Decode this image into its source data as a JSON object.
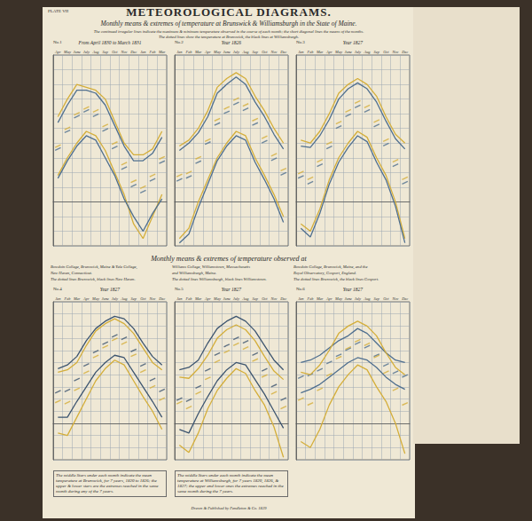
{
  "plate": "PLATE VII",
  "title": "METEOROLOGICAL DIAGRAMS.",
  "subtitle": "Monthly means & extremes of temperature at Brunswick & Williamsburgh in the State of Maine.",
  "note": [
    "The continued irregular lines indicate the maximum & minimum temperature observed in the course of each month; the short diagonal lines the means of the months.",
    "The dotted lines show the temperature at Brunswick, the black lines at Williamsburgh."
  ],
  "section_title": "Monthly means & extremes of temperature observed at",
  "footnotes": [
    "The middle Stars under each month indicate the mean temperature at Brunswick, for 7 years, 1820 to 1826; the upper & lower stars are the extremes reached in the same month during any of the 7 years.",
    "The middle Stars under each month indicate the mean temperature at Williamsburgh, for 7 years 1820, 1826, & 1827; the upper and lower ones the extremes reached in the same month during the 7 years."
  ],
  "imprint": "Drawn & Published by Pendleton & Co. 1829",
  "chart_data": [
    {
      "type": "line",
      "title": "No.1",
      "subtitle": "From April 1830 to March 1831",
      "categories": [
        "Apr",
        "May",
        "June",
        "July",
        "Aug",
        "Sep",
        "Oct",
        "Nov",
        "Dec",
        "Jan",
        "Feb",
        "Mar"
      ],
      "ylim": [
        -30,
        100
      ],
      "yticks": [
        -30,
        -20,
        -10,
        0,
        10,
        20,
        30,
        40,
        50,
        60,
        70,
        80,
        90,
        100
      ],
      "grid": true,
      "tick_labels": "x",
      "series": [
        {
          "name": "Brunswick",
          "color": "#d4ae3a",
          "values": [
            58,
            70,
            80,
            78,
            76,
            70,
            55,
            40,
            32,
            32,
            36,
            48
          ]
        },
        {
          "name": "Williamsburgh",
          "color": "#4f6f8f",
          "values": [
            54,
            66,
            76,
            76,
            74,
            66,
            52,
            38,
            28,
            28,
            33,
            44
          ]
        },
        {
          "name": "Brunswick",
          "color": "#d4ae3a",
          "values": [
            18,
            30,
            40,
            48,
            45,
            35,
            20,
            5,
            -15,
            -25,
            -10,
            5
          ]
        },
        {
          "name": "Williamsburgh",
          "color": "#4f6f8f",
          "values": [
            16,
            28,
            38,
            45,
            42,
            30,
            18,
            2,
            -10,
            -20,
            -8,
            2
          ]
        },
        {
          "name": "Brunswick",
          "color": "#d4ae3a",
          "type": "scatter",
          "marker": "dash",
          "values": [
            38,
            50,
            60,
            64,
            62,
            52,
            40,
            26,
            14,
            10,
            18,
            30
          ]
        },
        {
          "name": "Williamsburgh",
          "color": "#4f6f8f",
          "type": "scatter",
          "marker": "dash",
          "values": [
            36,
            48,
            58,
            62,
            59,
            49,
            37,
            23,
            11,
            7,
            15,
            27
          ]
        }
      ]
    },
    {
      "type": "line",
      "title": "No.2",
      "subtitle": "Year 1826",
      "categories": [
        "Jan",
        "Feb",
        "Mar",
        "Apr",
        "May",
        "June",
        "July",
        "Aug",
        "Sep",
        "Oct",
        "Nov",
        "Dec"
      ],
      "ylim": [
        -30,
        100
      ],
      "yticks": [
        -30,
        -20,
        -10,
        0,
        10,
        20,
        30,
        40,
        50,
        60,
        70,
        80,
        90,
        100
      ],
      "grid": true,
      "tick_labels": "x",
      "series": [
        {
          "name": "Brunswick",
          "color": "#d4ae3a",
          "values": [
            38,
            42,
            50,
            62,
            78,
            84,
            88,
            84,
            72,
            62,
            50,
            40
          ]
        },
        {
          "name": "Williamsburgh",
          "color": "#4f6f8f",
          "values": [
            35,
            40,
            47,
            58,
            74,
            80,
            85,
            80,
            68,
            58,
            46,
            36
          ]
        },
        {
          "name": "Brunswick",
          "color": "#d4ae3a",
          "values": [
            -25,
            -18,
            0,
            15,
            30,
            40,
            48,
            45,
            30,
            18,
            5,
            -10
          ]
        },
        {
          "name": "Williamsburgh",
          "color": "#4f6f8f",
          "values": [
            -28,
            -22,
            -4,
            12,
            28,
            38,
            45,
            42,
            27,
            15,
            2,
            -14
          ]
        },
        {
          "name": "Brunswick",
          "color": "#d4ae3a",
          "type": "scatter",
          "marker": "dash",
          "values": [
            18,
            20,
            30,
            42,
            56,
            64,
            70,
            66,
            56,
            44,
            32,
            22
          ]
        },
        {
          "name": "Williamsburgh",
          "color": "#4f6f8f",
          "type": "scatter",
          "marker": "dash",
          "values": [
            15,
            17,
            27,
            40,
            53,
            61,
            67,
            63,
            53,
            41,
            29,
            19
          ]
        }
      ]
    },
    {
      "type": "line",
      "title": "No.3",
      "subtitle": "Year 1827",
      "categories": [
        "Jan",
        "Feb",
        "Mar",
        "Apr",
        "May",
        "June",
        "July",
        "Aug",
        "Sep",
        "Oct",
        "Nov",
        "Dec"
      ],
      "ylim": [
        -30,
        100
      ],
      "yticks": [
        -30,
        -20,
        -10,
        0,
        10,
        20,
        30,
        40,
        50,
        60,
        70,
        80,
        90,
        100
      ],
      "grid": true,
      "tick_labels": "x",
      "series": [
        {
          "name": "Brunswick",
          "color": "#d4ae3a",
          "values": [
            42,
            40,
            48,
            60,
            74,
            80,
            84,
            80,
            72,
            58,
            46,
            40
          ]
        },
        {
          "name": "Williamsburgh",
          "color": "#4f6f8f",
          "values": [
            38,
            37,
            45,
            56,
            70,
            77,
            81,
            77,
            68,
            55,
            43,
            36
          ]
        },
        {
          "name": "Brunswick",
          "color": "#d4ae3a",
          "values": [
            -15,
            -20,
            -5,
            15,
            30,
            40,
            48,
            44,
            30,
            18,
            0,
            -25
          ]
        },
        {
          "name": "Williamsburgh",
          "color": "#4f6f8f",
          "values": [
            -18,
            -24,
            -8,
            12,
            27,
            37,
            45,
            41,
            27,
            15,
            -3,
            -28
          ]
        },
        {
          "name": "Brunswick",
          "color": "#d4ae3a",
          "type": "scatter",
          "marker": "dash",
          "values": [
            20,
            16,
            28,
            40,
            54,
            62,
            68,
            65,
            55,
            42,
            28,
            16
          ]
        },
        {
          "name": "Williamsburgh",
          "color": "#4f6f8f",
          "type": "scatter",
          "marker": "dash",
          "values": [
            17,
            13,
            25,
            37,
            51,
            59,
            65,
            62,
            52,
            39,
            25,
            13
          ]
        }
      ]
    },
    {
      "type": "line",
      "title": "No.4",
      "subtitle": "Year 1827",
      "annotations": [
        "Bowdoin College, Brunswick, Maine & Yale College,",
        "New Haven, Connecticut.",
        "The dotted lines Brunswick, black lines New Haven."
      ],
      "categories": [
        "Jan",
        "Feb",
        "Mar",
        "Apr",
        "May",
        "June",
        "July",
        "Aug",
        "Sep",
        "Oct",
        "Nov",
        "Dec"
      ],
      "ylim": [
        -30,
        100
      ],
      "yticks": [
        -30,
        -20,
        -10,
        0,
        10,
        20,
        30,
        40,
        50,
        60,
        70,
        80,
        90,
        100
      ],
      "grid": true,
      "tick_labels": "x",
      "series": [
        {
          "name": "New Haven",
          "color": "#3d5570",
          "values": [
            45,
            48,
            55,
            68,
            78,
            84,
            88,
            86,
            78,
            66,
            55,
            48
          ]
        },
        {
          "name": "Brunswick",
          "color": "#d4ae3a",
          "values": [
            42,
            44,
            50,
            64,
            76,
            82,
            86,
            82,
            74,
            62,
            50,
            44
          ]
        },
        {
          "name": "New Haven",
          "color": "#3d5570",
          "values": [
            5,
            5,
            18,
            30,
            42,
            50,
            56,
            54,
            42,
            30,
            18,
            5
          ]
        },
        {
          "name": "Brunswick",
          "color": "#d4ae3a",
          "values": [
            -8,
            -10,
            5,
            20,
            35,
            45,
            52,
            48,
            35,
            22,
            10,
            -5
          ]
        },
        {
          "name": "New Haven",
          "color": "#3d5570",
          "type": "scatter",
          "marker": "dash",
          "values": [
            26,
            27,
            36,
            48,
            59,
            66,
            72,
            70,
            60,
            48,
            36,
            27
          ]
        },
        {
          "name": "Brunswick",
          "color": "#d4ae3a",
          "type": "scatter",
          "marker": "dash",
          "values": [
            18,
            17,
            28,
            42,
            55,
            63,
            69,
            66,
            56,
            43,
            30,
            20
          ]
        }
      ]
    },
    {
      "type": "line",
      "title": "No.5",
      "subtitle": "Year 1827",
      "annotations": [
        "Williams College, Williamstown, Massachusetts",
        "and Williamsburgh, Maine.",
        "The dotted lines Williamsburgh, black lines Williamstown."
      ],
      "categories": [
        "Jan",
        "Feb",
        "Mar",
        "Apr",
        "May",
        "June",
        "July",
        "Aug",
        "Sep",
        "Oct",
        "Nov",
        "Dec"
      ],
      "ylim": [
        -30,
        100
      ],
      "yticks": [
        -30,
        -20,
        -10,
        0,
        10,
        20,
        30,
        40,
        50,
        60,
        70,
        80,
        90,
        100
      ],
      "grid": true,
      "tick_labels": "x",
      "series": [
        {
          "name": "Williamstown",
          "color": "#3d5570",
          "values": [
            44,
            46,
            52,
            66,
            78,
            84,
            88,
            84,
            76,
            64,
            52,
            44
          ]
        },
        {
          "name": "Williamsburgh",
          "color": "#d4ae3a",
          "values": [
            38,
            37,
            45,
            56,
            70,
            77,
            81,
            77,
            68,
            55,
            43,
            36
          ]
        },
        {
          "name": "Williamstown",
          "color": "#3d5570",
          "values": [
            -5,
            -8,
            8,
            22,
            35,
            44,
            50,
            48,
            36,
            24,
            10,
            -4
          ]
        },
        {
          "name": "Williamsburgh",
          "color": "#d4ae3a",
          "values": [
            -18,
            -24,
            -8,
            12,
            27,
            37,
            45,
            41,
            27,
            15,
            -3,
            -28
          ]
        },
        {
          "name": "Williamstown",
          "color": "#3d5570",
          "type": "scatter",
          "marker": "dash",
          "values": [
            20,
            19,
            30,
            44,
            57,
            64,
            70,
            67,
            57,
            44,
            31,
            20
          ]
        },
        {
          "name": "Williamsburgh",
          "color": "#d4ae3a",
          "type": "scatter",
          "marker": "dash",
          "values": [
            17,
            13,
            25,
            37,
            51,
            59,
            65,
            62,
            52,
            39,
            25,
            13
          ]
        }
      ]
    },
    {
      "type": "line",
      "title": "No.6",
      "subtitle": "Year 1827",
      "annotations": [
        "Bowdoin College, Brunswick, Maine, and the",
        "Royal Observatory, Gosport, England.",
        "The dotted lines Brunswick, the black lines Gosport."
      ],
      "categories": [
        "Jan",
        "Feb",
        "Mar",
        "Apr",
        "May",
        "June",
        "July",
        "Aug",
        "Sep",
        "Oct",
        "Nov",
        "Dec"
      ],
      "ylim": [
        -30,
        100
      ],
      "yticks": [
        -30,
        -20,
        -10,
        0,
        10,
        20,
        30,
        40,
        50,
        60,
        70,
        80,
        90,
        100
      ],
      "grid": true,
      "tick_labels": "x",
      "series": [
        {
          "name": "Gosport",
          "color": "#4f6f8f",
          "values": [
            50,
            52,
            56,
            62,
            68,
            72,
            78,
            74,
            66,
            58,
            52,
            50
          ]
        },
        {
          "name": "Brunswick",
          "color": "#d4ae3a",
          "values": [
            42,
            40,
            48,
            60,
            74,
            80,
            84,
            80,
            72,
            58,
            46,
            40
          ]
        },
        {
          "name": "Gosport",
          "color": "#4f6f8f",
          "values": [
            25,
            28,
            32,
            38,
            44,
            50,
            54,
            52,
            46,
            38,
            32,
            28
          ]
        },
        {
          "name": "Brunswick",
          "color": "#d4ae3a",
          "values": [
            -15,
            -20,
            -5,
            15,
            30,
            40,
            48,
            44,
            30,
            18,
            0,
            -25
          ]
        },
        {
          "name": "Gosport",
          "color": "#4f6f8f",
          "type": "scatter",
          "marker": "dash",
          "values": [
            38,
            40,
            44,
            50,
            56,
            61,
            66,
            63,
            56,
            48,
            42,
            39
          ]
        },
        {
          "name": "Brunswick",
          "color": "#d4ae3a",
          "type": "scatter",
          "marker": "dash",
          "values": [
            20,
            16,
            28,
            40,
            54,
            62,
            68,
            65,
            55,
            42,
            28,
            16
          ]
        }
      ]
    }
  ]
}
